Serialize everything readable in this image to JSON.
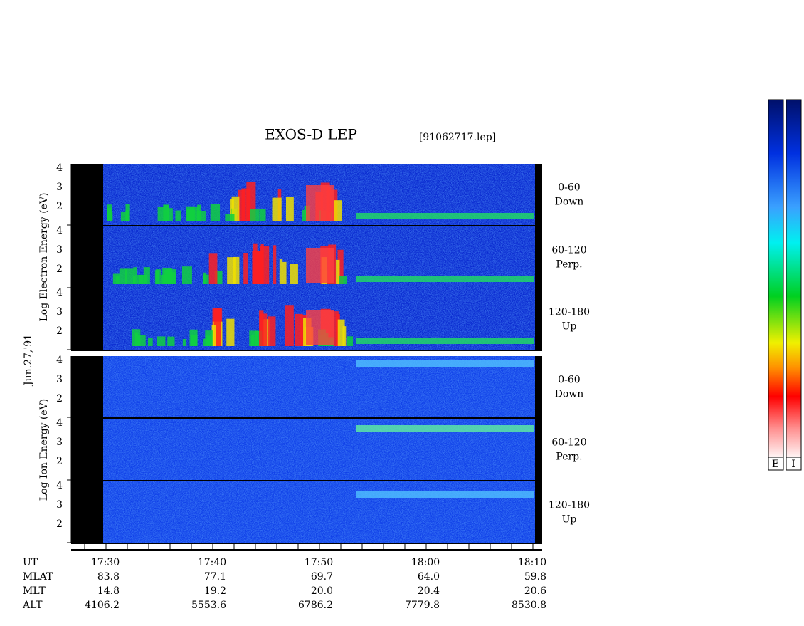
{
  "title": "EXOS-D LEP",
  "file": "[91062717.lep]",
  "date": "Jun.27,'91",
  "groups": [
    {
      "axis_label": "Log Electron Energy (eV)",
      "panels": [
        {
          "angle": "0-60",
          "direction": "Down"
        },
        {
          "angle": "60-120",
          "direction": "Perp."
        },
        {
          "angle": "120-180",
          "direction": "Up"
        }
      ]
    },
    {
      "axis_label": "Log Ion Energy (eV)",
      "panels": [
        {
          "angle": "0-60",
          "direction": "Down"
        },
        {
          "angle": "60-120",
          "direction": "Perp."
        },
        {
          "angle": "120-180",
          "direction": "Up"
        }
      ]
    }
  ],
  "y_ticks": [
    "4",
    "3",
    "2"
  ],
  "time_rows": [
    {
      "label": "UT",
      "values": [
        "17:30",
        "17:40",
        "17:50",
        "18:00",
        "18:10"
      ]
    },
    {
      "label": "MLAT",
      "values": [
        "83.8",
        "77.1",
        "69.7",
        "64.0",
        "59.8"
      ]
    },
    {
      "label": "MLT",
      "values": [
        "14.8",
        "19.2",
        "20.0",
        "20.4",
        "20.6"
      ]
    },
    {
      "label": "ALT",
      "values": [
        "4106.2",
        "5553.6",
        "6786.2",
        "7779.8",
        "8530.8"
      ]
    }
  ],
  "colorbars": [
    "E",
    "I"
  ]
}
